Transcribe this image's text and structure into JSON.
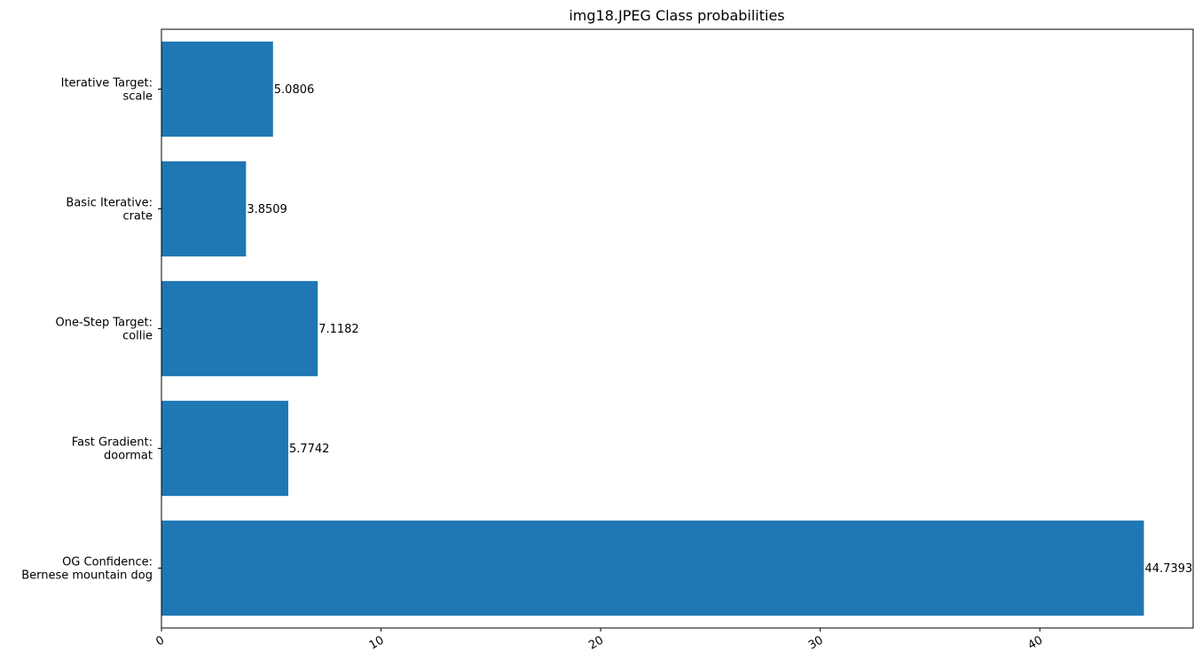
{
  "chart_data": {
    "type": "bar",
    "orientation": "horizontal",
    "title": "img18.JPEG Class probabilities",
    "xlabel": "",
    "ylabel": "",
    "categories": [
      [
        "OG Confidence:",
        "Bernese mountain dog"
      ],
      [
        "Fast Gradient:",
        "doormat"
      ],
      [
        "One-Step Target:",
        "collie"
      ],
      [
        "Basic Iterative:",
        "crate"
      ],
      [
        "Iterative Target:",
        "scale"
      ]
    ],
    "values": [
      44.7393,
      5.7742,
      7.1182,
      3.8509,
      5.0806
    ],
    "value_labels": [
      "44.7393",
      "5.7742",
      "7.1182",
      "3.8509",
      "5.0806"
    ],
    "xticks": [
      0,
      10,
      20,
      30,
      40
    ],
    "xtick_labels": [
      "0",
      "10",
      "20",
      "30",
      "40"
    ],
    "xlim": [
      0,
      46.98
    ],
    "bar_color": "#1f77b4",
    "grid": false,
    "legend": "none"
  }
}
